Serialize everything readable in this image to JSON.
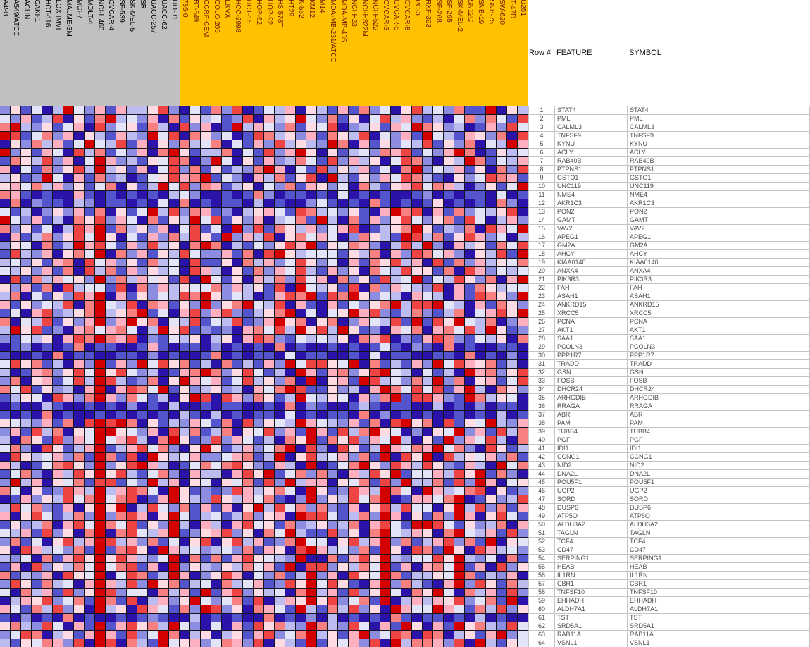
{
  "table_header": {
    "row": "Row #",
    "feature": "FEATURE",
    "symbol": "SYMBOL"
  },
  "col_groups": [
    {
      "bg": "#c0c0c0",
      "fg": "#000000",
      "count": 17
    },
    {
      "bg": "#ffc200",
      "fg": "#6e1a05",
      "count": 33
    }
  ],
  "chart_data": {
    "type": "heatmap",
    "columns": [
      "A498",
      "A549/ATCC",
      "ACHN",
      "CAKI-1",
      "HCT-116",
      "LOX IMVI",
      "MALME-3M",
      "MCF7",
      "MOLT-4",
      "NCI-H460",
      "OVCAR-4",
      "SF-539",
      "SK-MEL-5",
      "SR",
      "UACC-257",
      "UACC-62",
      "UO-31",
      "786-0",
      "BT-549",
      "CCRF-CEM",
      "COLO 205",
      "EKVX",
      "HCC-2998",
      "HCT-15",
      "HOP-62",
      "HOP-92",
      "HS 578T",
      "HT29",
      "K-562",
      "KM12",
      "M14",
      "MDA-MB-231/ATCC",
      "MDA-MB-435",
      "NCI-H23",
      "NCI-H322M",
      "NCI-H522",
      "OVCAR-3",
      "OVCAR-5",
      "OVCAR-8",
      "PC-3",
      "RXF-393",
      "SF-268",
      "SF-295",
      "SK-MEL-2",
      "SN12C",
      "SNB-19",
      "SNB-75",
      "SW-620",
      "T-47D",
      "U251"
    ],
    "rows": [
      "STAT4",
      "PML",
      "CALML3",
      "TNFSF9",
      "KYNU",
      "ACLY",
      "RAB40B",
      "PTPNS1",
      "GSTO1",
      "UNC119",
      "NME4",
      "AKR1C3",
      "PON2",
      "GAMT",
      "VAV2",
      "APEG1",
      "GM2A",
      "AHCY",
      "KIAA0140",
      "ANXA4",
      "PIK3R3",
      "FAH",
      "ASAH1",
      "ANKRD15",
      "XRCC5",
      "PCNA",
      "AKT1",
      "SAA1",
      "PCOLN3",
      "PPP1R7",
      "TRADD",
      "GSN",
      "FOSB",
      "DHCR24",
      "ARHGDIB",
      "RRAGA",
      "ABR",
      "PAM",
      "TUBB4",
      "PGF",
      "IDI1",
      "CCNG1",
      "NID2",
      "DNA2L",
      "POU5F1",
      "UGP2",
      "SORD",
      "DUSP6",
      "ATP5O",
      "ALDH3A2",
      "TAGLN",
      "TCF4",
      "CD47",
      "SERPING1",
      "HEAB",
      "IL1RN",
      "CBR1",
      "TNFSF10",
      "EHHADH",
      "ALDH7A1",
      "TST",
      "SRD5A1",
      "RAB11A",
      "VSNL1"
    ],
    "palette": [
      "#d40000",
      "#ee4444",
      "#f98080",
      "#ffb0c0",
      "#ffdce4",
      "#e4e4f8",
      "#bcbcf0",
      "#8c8ce0",
      "#5454cc",
      "#2b12a8"
    ],
    "palette_meaning": "0=high/red through 9=low/dark-blue",
    "cells": [
      "74859605738366417958271985639468382759416572880946",
      "57386194820657392846587193640572849516378695272581",
      "20674853917548269173980635728451976483502476983715",
      "01852739468367051924759812647382461957380568347291",
      "94726385056183947265295837164670293847561847295603",
      "07483591628573920486629581730494865723185730298465",
      "82461739503768451297059483762581736495127946028563",
      "39582741606483951728486720395817463859207563849271",
      "64870593827698541320857936284190684735126894751238",
      "43526374852948605172386495728347592684315236974850",
      "23898993898989896579989827988989598989987989889598",
      "92978896798898959298988969899758989289898498989279",
      "58697473829485061723879643581265748930219382756419",
      "05738692417359284605184739652806928374157428159637",
      "27485961308264739518590718246375319864204867291350",
      "93862741504958372614807361942535972468016284137596",
      "74592860315837164920296857413084523796160793648251",
      "81673942509273846157738291046555846293712537946180",
      "65748329153748265918849263751475938241639182736452",
      "56473829162837465913694827351683749256144829137565",
      "91826354707263548190584936271539274816508561472930",
      "47382916558192736455273648190564819273567193824655",
      "62958471309384756120475698312081204756935693812470",
      "38475619205619238470742056193893857420611056938247",
      "85931764206420859317317864209595403178627862953140",
      "29561847307304295618561873042942973561808140562973",
      "60418793253259604187879325160416048793529325160487",
      "78564931202319785649649312785656492319783127856492",
      "98798982988998389889798989298998989858978929899889",
      "89989298899889798998298988959889989598899889298979",
      "51428693708370514286928683705114509286837051342869",
      "69832741504157698320274158690383274105695869032741",
      "72943851601687294035385164729094380165726072943851",
      "25184769309312508476476935201884769302515183069247",
      "86459137203725869401913724860564593720811378026459",
      "98996899898979896998988998929789986898899698979889",
      "89892989989898989689698988959898892979898998989698",
      "45673829101029486735829174560356738291042918450673",
      "73816294500457391628629451738038162045979450738162",
      "69248173505316920487173586924082417350694807351692",
      "52791486308631527940486375209179148603523052791486",
      "91465372802819046537753286094165372809140916453728",
      "36985214707410369852521478369098520471361478369052",
      "85279361404168527936693140852727936140855361408279",
      "70639452811857063945945281706339452817066281703954",
      "25948713606312590487871364259048713602590365219487",
      "98374615205219830467146352897074615209833520984761",
      "61527839404096157283839406152727839416155940617283",
      "39415862707213940586586274390115862703948270394158",
      "84762931502518470693693154827647629315800158476293",
      "56381749209215630874317492506881749205634920563817",
      "72859416301637285941941638720559416307286317280945",
      "49136572808214903657657283491036572804912804913657",
      "67592831404136750928283145670992831406755140675928",
      "83917462505218390746746253809117462508393250839174",
      "28673914509512860397413957286073914502866450286739",
      "71482659303617042865926538714051489307268930714826",
      "59263817401755926380831746592063817405924059263817",
      "96341752802819637405752819634041752809636341752809",
      "35826174906491358270174923580682617490355035826174",
      "89798929899898789969898992989796989892898898969899",
      "42671593808314260579593814267026715938049380426715",
      "75129648303817502964964831752064830751291296483075",
      "68452371901926805437523719468084537190622371906845"
    ]
  }
}
